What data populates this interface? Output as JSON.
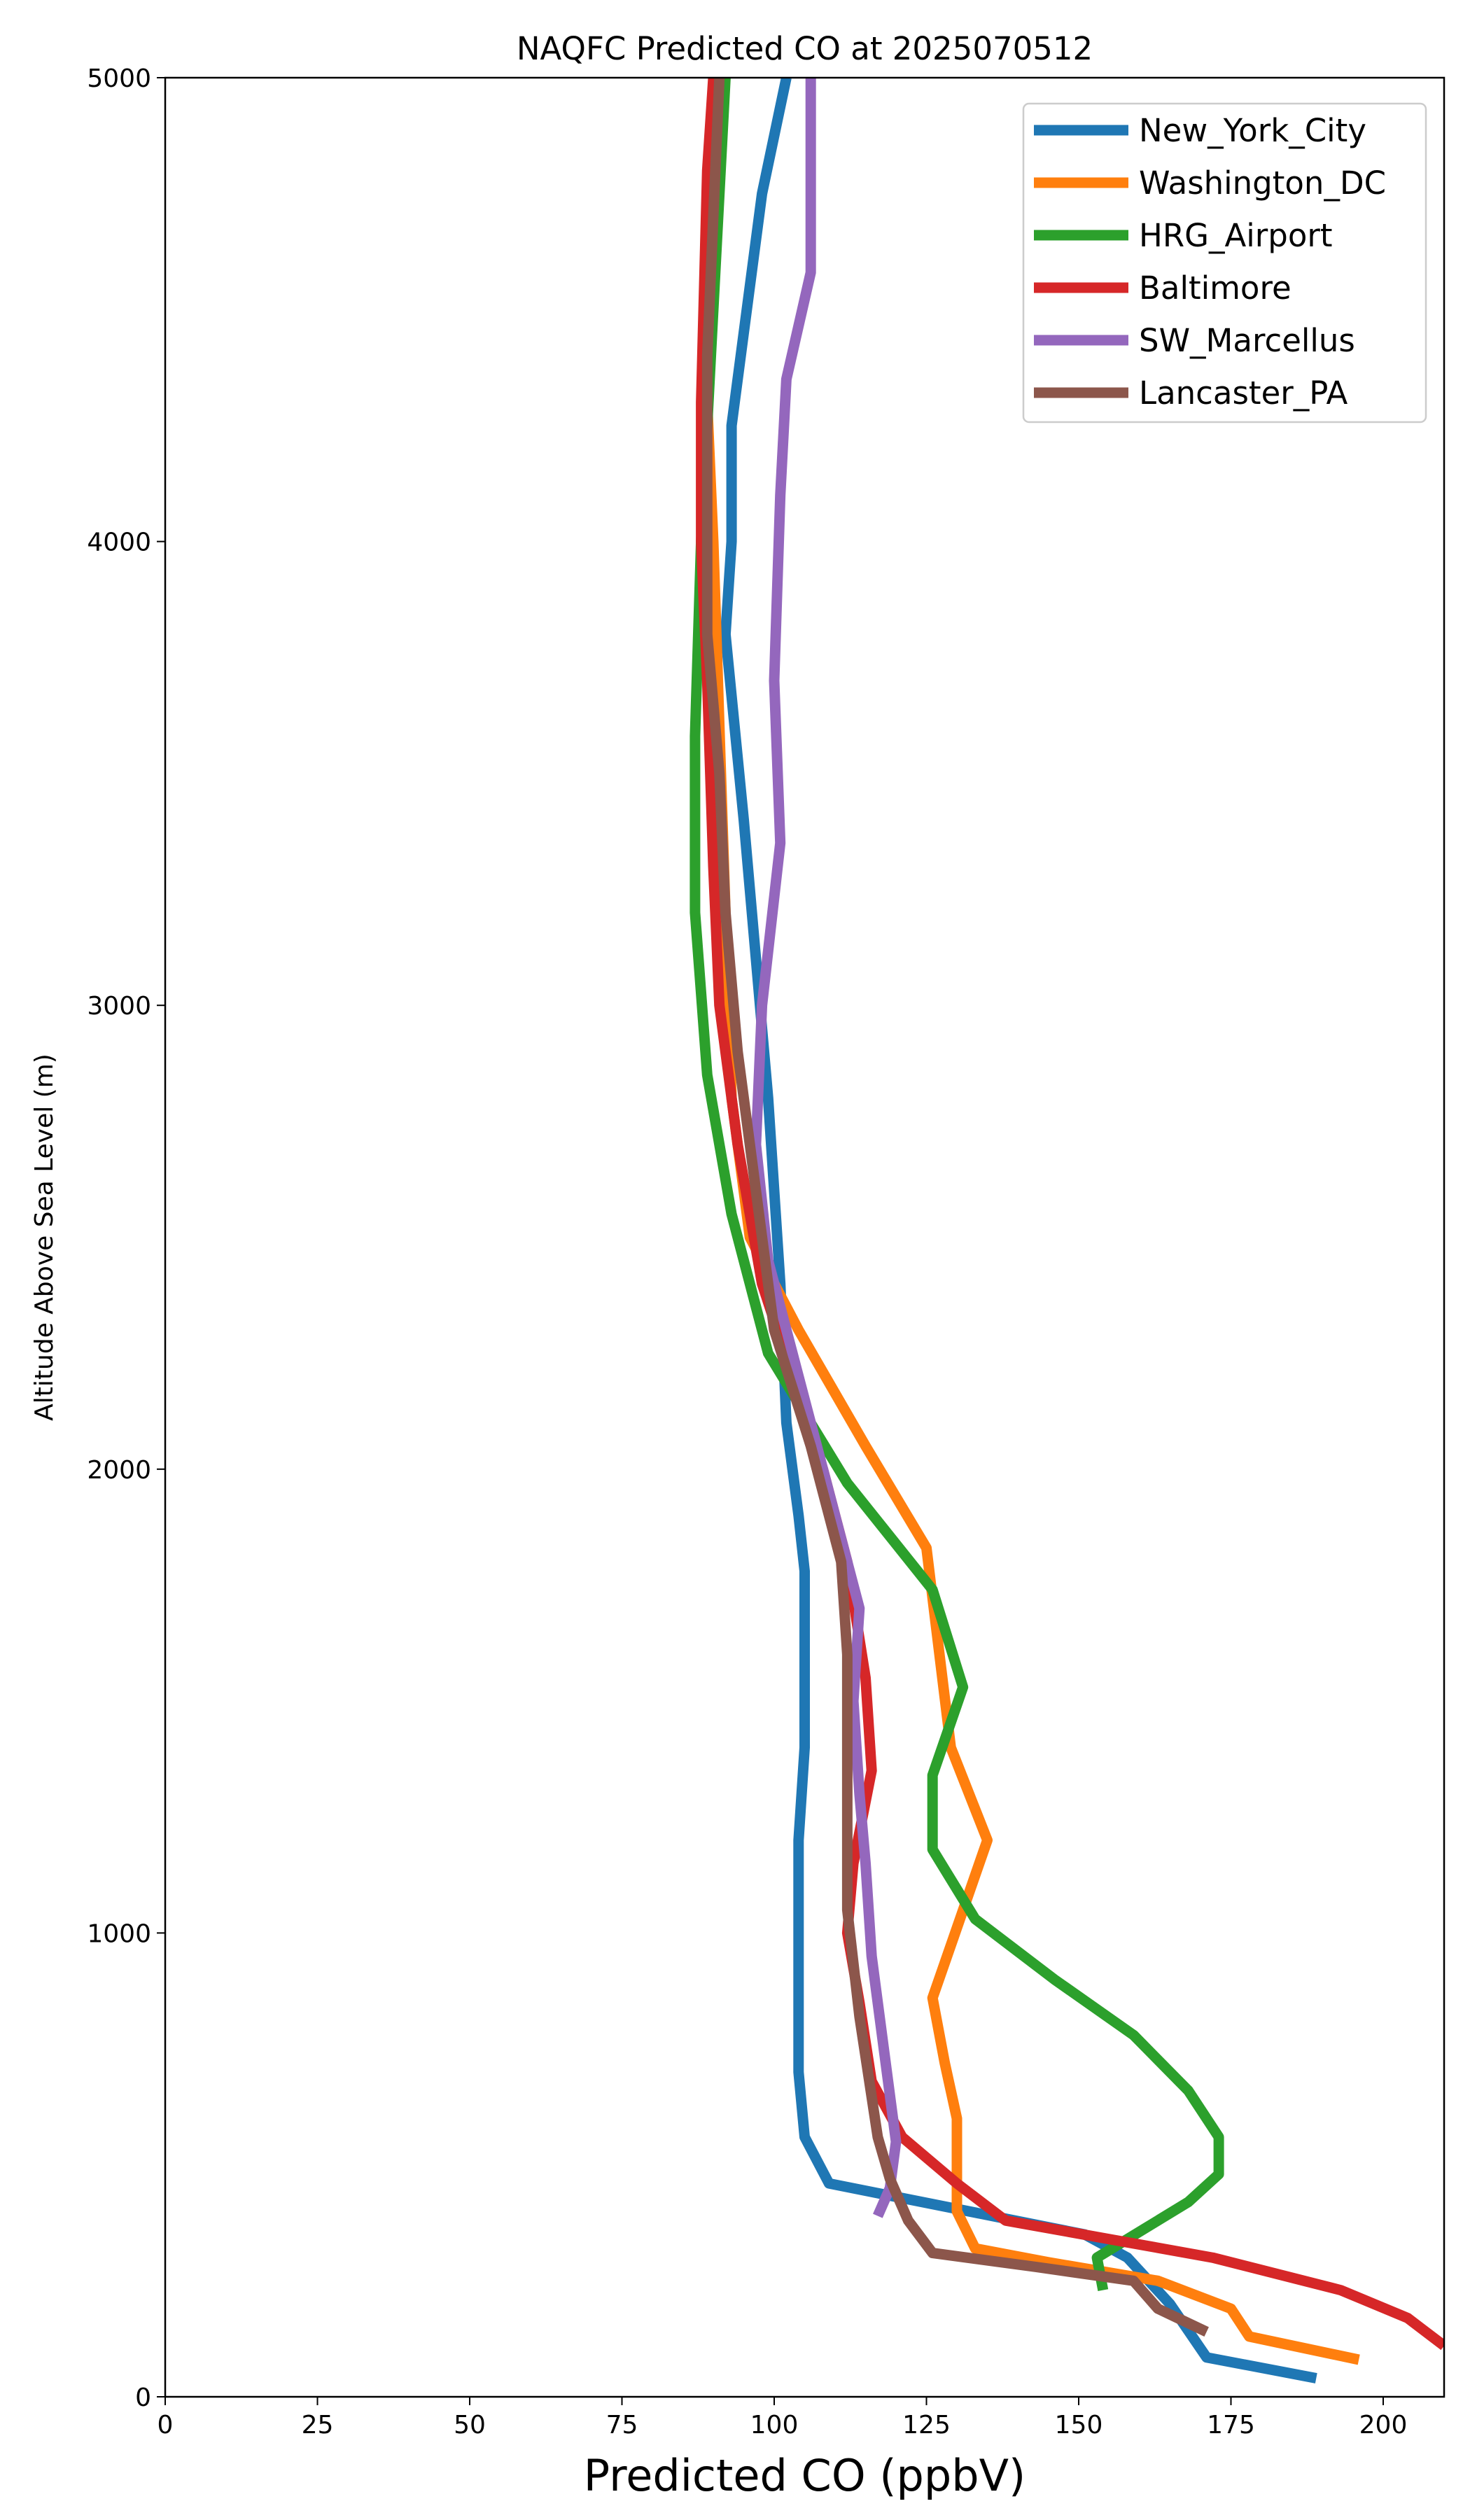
{
  "chart_data": {
    "type": "line",
    "title": "NAQFC Predicted CO at 2025070512",
    "xlabel": "Predicted CO (ppbV)",
    "ylabel": "Altitude Above Sea Level (m)",
    "xlim": [
      0,
      210
    ],
    "ylim": [
      0,
      5000
    ],
    "xticks": [
      0,
      25,
      50,
      75,
      100,
      125,
      150,
      175,
      200
    ],
    "yticks": [
      0,
      1000,
      2000,
      3000,
      4000,
      5000
    ],
    "grid": false,
    "legend": "top-right",
    "series": [
      {
        "name": "New_York_City",
        "color": "#1f77b4",
        "points": [
          [
            189,
            40
          ],
          [
            171,
            85
          ],
          [
            165,
            200
          ],
          [
            158,
            300
          ],
          [
            151,
            350
          ],
          [
            109,
            460
          ],
          [
            105,
            560
          ],
          [
            104,
            700
          ],
          [
            104,
            1000
          ],
          [
            104,
            1200
          ],
          [
            105,
            1400
          ],
          [
            105,
            1600
          ],
          [
            105,
            1780
          ],
          [
            104,
            1900
          ],
          [
            102,
            2100
          ],
          [
            101,
            2400
          ],
          [
            99,
            2800
          ],
          [
            97,
            3100
          ],
          [
            95,
            3400
          ],
          [
            92,
            3800
          ],
          [
            93,
            4000
          ],
          [
            93,
            4250
          ],
          [
            98,
            4750
          ],
          [
            102,
            5000
          ]
        ]
      },
      {
        "name": "Washington_DC",
        "color": "#ff7f0e",
        "points": [
          [
            196,
            80
          ],
          [
            178,
            130
          ],
          [
            175,
            190
          ],
          [
            163,
            250
          ],
          [
            145,
            290
          ],
          [
            133,
            320
          ],
          [
            130,
            400
          ],
          [
            130,
            600
          ],
          [
            128,
            720
          ],
          [
            126,
            860
          ],
          [
            135,
            1200
          ],
          [
            129,
            1400
          ],
          [
            125,
            1830
          ],
          [
            115,
            2050
          ],
          [
            104,
            2300
          ],
          [
            96,
            2500
          ],
          [
            93,
            2800
          ],
          [
            92,
            3200
          ],
          [
            91,
            3600
          ],
          [
            90,
            4000
          ],
          [
            89,
            4300
          ],
          [
            90,
            4700
          ],
          [
            91,
            5000
          ]
        ]
      },
      {
        "name": "HRG_Airport",
        "color": "#2ca02c",
        "points": [
          [
            154,
            230
          ],
          [
            153,
            300
          ],
          [
            168,
            420
          ],
          [
            173,
            480
          ],
          [
            173,
            560
          ],
          [
            168,
            660
          ],
          [
            159,
            780
          ],
          [
            146,
            900
          ],
          [
            133,
            1030
          ],
          [
            126,
            1180
          ],
          [
            126,
            1340
          ],
          [
            131,
            1530
          ],
          [
            126,
            1740
          ],
          [
            112,
            1970
          ],
          [
            99,
            2250
          ],
          [
            93,
            2550
          ],
          [
            89,
            2850
          ],
          [
            87,
            3200
          ],
          [
            87,
            3580
          ],
          [
            88,
            4000
          ],
          [
            90,
            4500
          ],
          [
            92,
            5000
          ]
        ]
      },
      {
        "name": "Baltimore",
        "color": "#d62728",
        "points": [
          [
            210,
            110
          ],
          [
            204,
            170
          ],
          [
            193,
            230
          ],
          [
            172,
            300
          ],
          [
            155,
            340
          ],
          [
            138,
            380
          ],
          [
            130,
            460
          ],
          [
            121,
            560
          ],
          [
            116,
            680
          ],
          [
            114,
            850
          ],
          [
            112,
            1000
          ],
          [
            113,
            1150
          ],
          [
            116,
            1350
          ],
          [
            115,
            1550
          ],
          [
            112,
            1800
          ],
          [
            108,
            2000
          ],
          [
            103,
            2200
          ],
          [
            98,
            2400
          ],
          [
            94,
            2700
          ],
          [
            91,
            3000
          ],
          [
            90,
            3300
          ],
          [
            89,
            3700
          ],
          [
            88,
            4000
          ],
          [
            88,
            4300
          ],
          [
            89,
            4800
          ],
          [
            90,
            5000
          ]
        ]
      },
      {
        "name": "SW_Marcellus",
        "color": "#9467bd",
        "points": [
          [
            117,
            390
          ],
          [
            119,
            450
          ],
          [
            120,
            550
          ],
          [
            118,
            750
          ],
          [
            116,
            950
          ],
          [
            115,
            1150
          ],
          [
            114,
            1300
          ],
          [
            113,
            1500
          ],
          [
            114,
            1700
          ],
          [
            110,
            1900
          ],
          [
            106,
            2100
          ],
          [
            102,
            2300
          ],
          [
            99,
            2450
          ],
          [
            97,
            2700
          ],
          [
            98,
            3000
          ],
          [
            101,
            3350
          ],
          [
            100,
            3700
          ],
          [
            101,
            4100
          ],
          [
            102,
            4350
          ],
          [
            106,
            4580
          ],
          [
            106,
            4750
          ],
          [
            106,
            5000
          ]
        ]
      },
      {
        "name": "Lancaster_PA",
        "color": "#8c564b",
        "points": [
          [
            171,
            140
          ],
          [
            163,
            190
          ],
          [
            159,
            250
          ],
          [
            143,
            280
          ],
          [
            126,
            310
          ],
          [
            122,
            380
          ],
          [
            119,
            470
          ],
          [
            117,
            560
          ],
          [
            114,
            820
          ],
          [
            112,
            1050
          ],
          [
            112,
            1200
          ],
          [
            112,
            1400
          ],
          [
            112,
            1600
          ],
          [
            111,
            1800
          ],
          [
            106,
            2050
          ],
          [
            100,
            2300
          ],
          [
            97,
            2600
          ],
          [
            94,
            2900
          ],
          [
            92,
            3200
          ],
          [
            91,
            3500
          ],
          [
            89,
            3800
          ],
          [
            89,
            4100
          ],
          [
            89,
            4400
          ],
          [
            90,
            4700
          ],
          [
            91,
            5000
          ]
        ]
      }
    ]
  }
}
